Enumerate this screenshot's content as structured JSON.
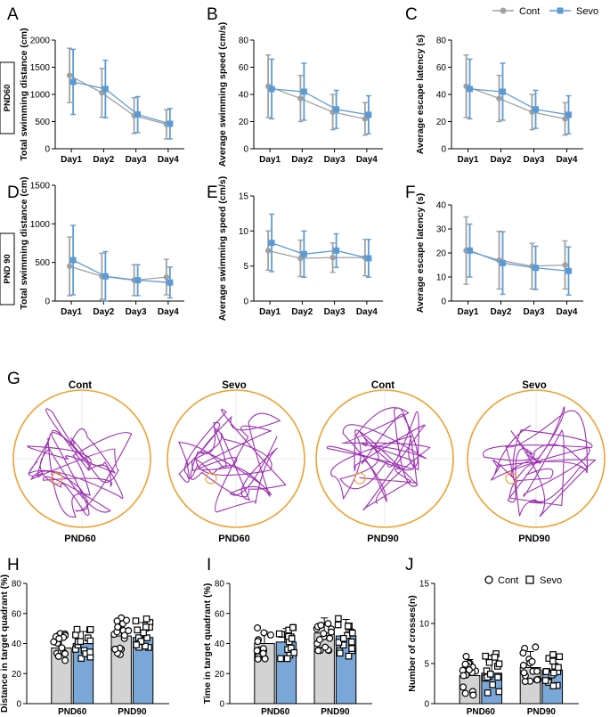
{
  "chart_data": {
    "type": "composite",
    "legend_top": {
      "cont": "Cont",
      "sevo": "Sevo"
    },
    "colors": {
      "cont": "#a0a0a0",
      "sevo": "#5b9bd5",
      "path": "#9b30b0",
      "pool": "#f0a030",
      "bar_cont": "#d3d3d3",
      "bar_sevo": "#79a7d8"
    },
    "row_labels": {
      "pnd60": "PND60",
      "pnd90": "PND 90"
    },
    "line_panels": [
      {
        "id": "A",
        "type": "line",
        "ylabel": "Total swimming distance (cm)",
        "ylim": [
          0,
          2000
        ],
        "yticks": [
          0,
          500,
          1000,
          1500,
          2000
        ],
        "categories": [
          "Day1",
          "Day2",
          "Day3",
          "Day4"
        ],
        "series": [
          {
            "name": "Cont",
            "values": [
              1350,
              1030,
              610,
              450
            ],
            "err": [
              500,
              450,
              330,
              270
            ]
          },
          {
            "name": "Sevo",
            "values": [
              1230,
              1100,
              630,
              460
            ],
            "err": [
              600,
              530,
              330,
              280
            ]
          }
        ]
      },
      {
        "id": "B",
        "type": "line",
        "ylabel": "Average swimming speed (cm/s)",
        "ylim": [
          0,
          80
        ],
        "yticks": [
          0,
          20,
          40,
          60,
          80
        ],
        "categories": [
          "Day1",
          "Day2",
          "Day3",
          "Day4"
        ],
        "series": [
          {
            "name": "Cont",
            "values": [
              46,
              37,
              27,
              22
            ],
            "err": [
              23,
              17,
              13,
              12
            ]
          },
          {
            "name": "Sevo",
            "values": [
              44,
              42,
              29,
              25
            ],
            "err": [
              22,
              21,
              14,
              14
            ]
          }
        ]
      },
      {
        "id": "C",
        "type": "line",
        "ylabel": "Average escape latency (s)",
        "ylim": [
          0,
          80
        ],
        "yticks": [
          0,
          20,
          40,
          60,
          80
        ],
        "categories": [
          "Day1",
          "Day2",
          "Day3",
          "Day4"
        ],
        "series": [
          {
            "name": "Cont",
            "values": [
              46,
              37,
              27,
              22
            ],
            "err": [
              23,
              17,
              13,
              12
            ]
          },
          {
            "name": "Sevo",
            "values": [
              44,
              42,
              29,
              25
            ],
            "err": [
              22,
              21,
              14,
              14
            ]
          }
        ]
      },
      {
        "id": "D",
        "type": "line",
        "ylabel": "Total swimming distance (cm)",
        "ylim": [
          0,
          1500
        ],
        "yticks": [
          0,
          500,
          1000,
          1500
        ],
        "categories": [
          "Day1",
          "Day2",
          "Day3",
          "Day4"
        ],
        "series": [
          {
            "name": "Cont",
            "values": [
              450,
              320,
              270,
              310
            ],
            "err": [
              380,
              300,
              200,
              230
            ]
          },
          {
            "name": "Sevo",
            "values": [
              530,
              320,
              270,
              240
            ],
            "err": [
              450,
              320,
              200,
              200
            ]
          }
        ]
      },
      {
        "id": "E",
        "type": "line",
        "ylabel": "Average swimming speed (cm/s)",
        "ylim": [
          0,
          15
        ],
        "yticks": [
          0,
          5,
          10,
          15
        ],
        "categories": [
          "Day1",
          "Day2",
          "Day3",
          "Day4"
        ],
        "series": [
          {
            "name": "Cont",
            "values": [
              7.2,
              6.1,
              6.2,
              6.2
            ],
            "err": [
              2.8,
              2.6,
              2.1,
              2.6
            ]
          },
          {
            "name": "Sevo",
            "values": [
              8.3,
              6.7,
              7.2,
              6.1
            ],
            "err": [
              4.1,
              3.3,
              2.4,
              2.7
            ]
          }
        ]
      },
      {
        "id": "F",
        "type": "line",
        "ylabel": "Average escape latency (s)",
        "ylim": [
          0,
          40
        ],
        "yticks": [
          0,
          10,
          20,
          30,
          40
        ],
        "categories": [
          "Day1",
          "Day2",
          "Day3",
          "Day4"
        ],
        "series": [
          {
            "name": "Cont",
            "values": [
              21,
              17,
              14.5,
              15
            ],
            "err": [
              14,
              12,
              9.5,
              10
            ]
          },
          {
            "name": "Sevo",
            "values": [
              21,
              15.8,
              13.8,
              12.5
            ],
            "err": [
              11,
              13,
              9,
              10
            ]
          }
        ]
      }
    ],
    "tracks": {
      "id": "G",
      "items": [
        {
          "title": "Cont",
          "label": "PND60"
        },
        {
          "title": "Sevo",
          "label": "PND60"
        },
        {
          "title": "Cont",
          "label": "PND90"
        },
        {
          "title": "Sevo",
          "label": "PND90"
        }
      ]
    },
    "bar_panels": [
      {
        "id": "H",
        "type": "bar",
        "ylabel": "Distance in target quadrant (%)",
        "ylim": [
          0,
          80
        ],
        "yticks": [
          0,
          20,
          40,
          60,
          80
        ],
        "categories": [
          "PND60",
          "PND90"
        ],
        "series": [
          {
            "name": "Cont",
            "values": [
              37,
              45
            ],
            "err": [
              8,
              10
            ]
          },
          {
            "name": "Sevo",
            "values": [
              40,
              44
            ],
            "err": [
              8,
              10
            ]
          }
        ]
      },
      {
        "id": "I",
        "type": "bar",
        "ylabel": "Time in target quadrant (%)",
        "ylim": [
          0,
          80
        ],
        "yticks": [
          0,
          20,
          40,
          60,
          80
        ],
        "categories": [
          "PND60",
          "PND90"
        ],
        "series": [
          {
            "name": "Cont",
            "values": [
              40,
              47
            ],
            "err": [
              8,
              10
            ]
          },
          {
            "name": "Sevo",
            "values": [
              41,
              45
            ],
            "err": [
              9,
              11
            ]
          }
        ]
      },
      {
        "id": "J",
        "type": "bar",
        "ylabel": "Number of crosses(n)",
        "ylim": [
          0,
          15
        ],
        "yticks": [
          0,
          5,
          10,
          15
        ],
        "categories": [
          "PND60",
          "PND90"
        ],
        "series": [
          {
            "name": "Cont",
            "values": [
              3.5,
              4.5
            ],
            "err": [
              2,
              2
            ]
          },
          {
            "name": "Sevo",
            "values": [
              3.8,
              4.2
            ],
            "err": [
              2,
              1.6
            ]
          }
        ]
      }
    ],
    "bar_legend": {
      "cont": "Cont",
      "sevo": "Sevo"
    }
  }
}
